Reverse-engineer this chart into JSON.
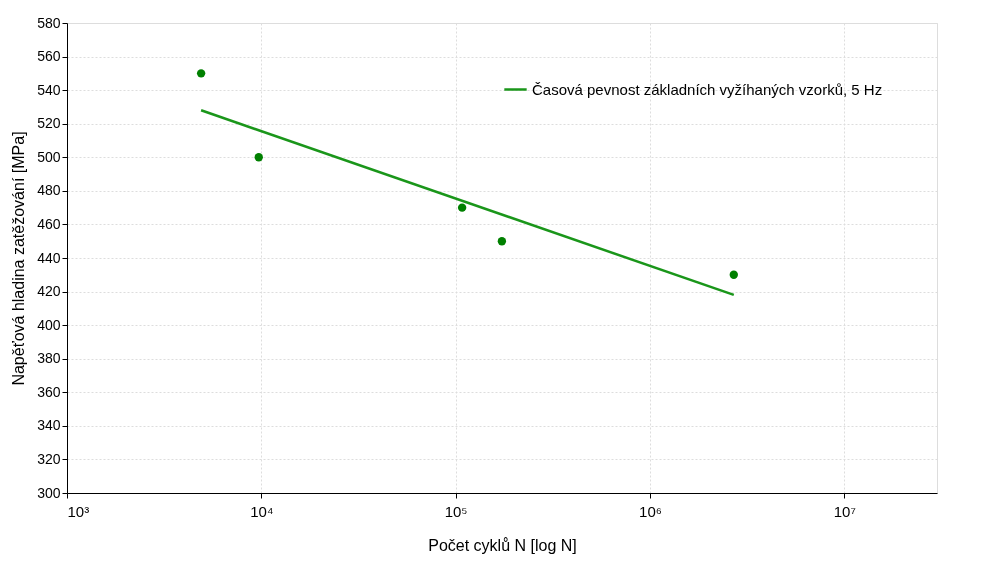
{
  "chart_data": {
    "type": "scatter",
    "xlabel": "Počet cyklů N [log N]",
    "ylabel": "Napěťová hladina zatěžování [MPa]",
    "log": "x",
    "series": [
      {
        "color": "#008000",
        "marker": "circle",
        "x": [
          4900,
          9700,
          108000,
          173000,
          2700000
        ],
        "values": [
          550,
          500,
          470,
          450,
          430
        ]
      },
      {
        "type": "line",
        "name": "Časová pevnost základních vyžíhaných vzorků, 5 Hz",
        "color": "#1a961a",
        "marker": "none",
        "x": [
          4900,
          2700000
        ],
        "values": [
          528,
          418
        ]
      }
    ],
    "xlim": [
      1000,
      30000000
    ],
    "xticks": [
      {
        "value": 1000,
        "label": "10³"
      },
      {
        "value": 10000,
        "label": "10⁴"
      },
      {
        "value": 100000,
        "label": "10⁵"
      },
      {
        "value": 1000000,
        "label": "10⁶"
      },
      {
        "value": 10000000,
        "label": "10⁷"
      }
    ],
    "ylim": [
      300,
      580
    ],
    "yticks": [
      300,
      320,
      340,
      360,
      380,
      400,
      420,
      440,
      460,
      480,
      500,
      520,
      540,
      560,
      580
    ],
    "grid": true,
    "legend": "top right"
  }
}
